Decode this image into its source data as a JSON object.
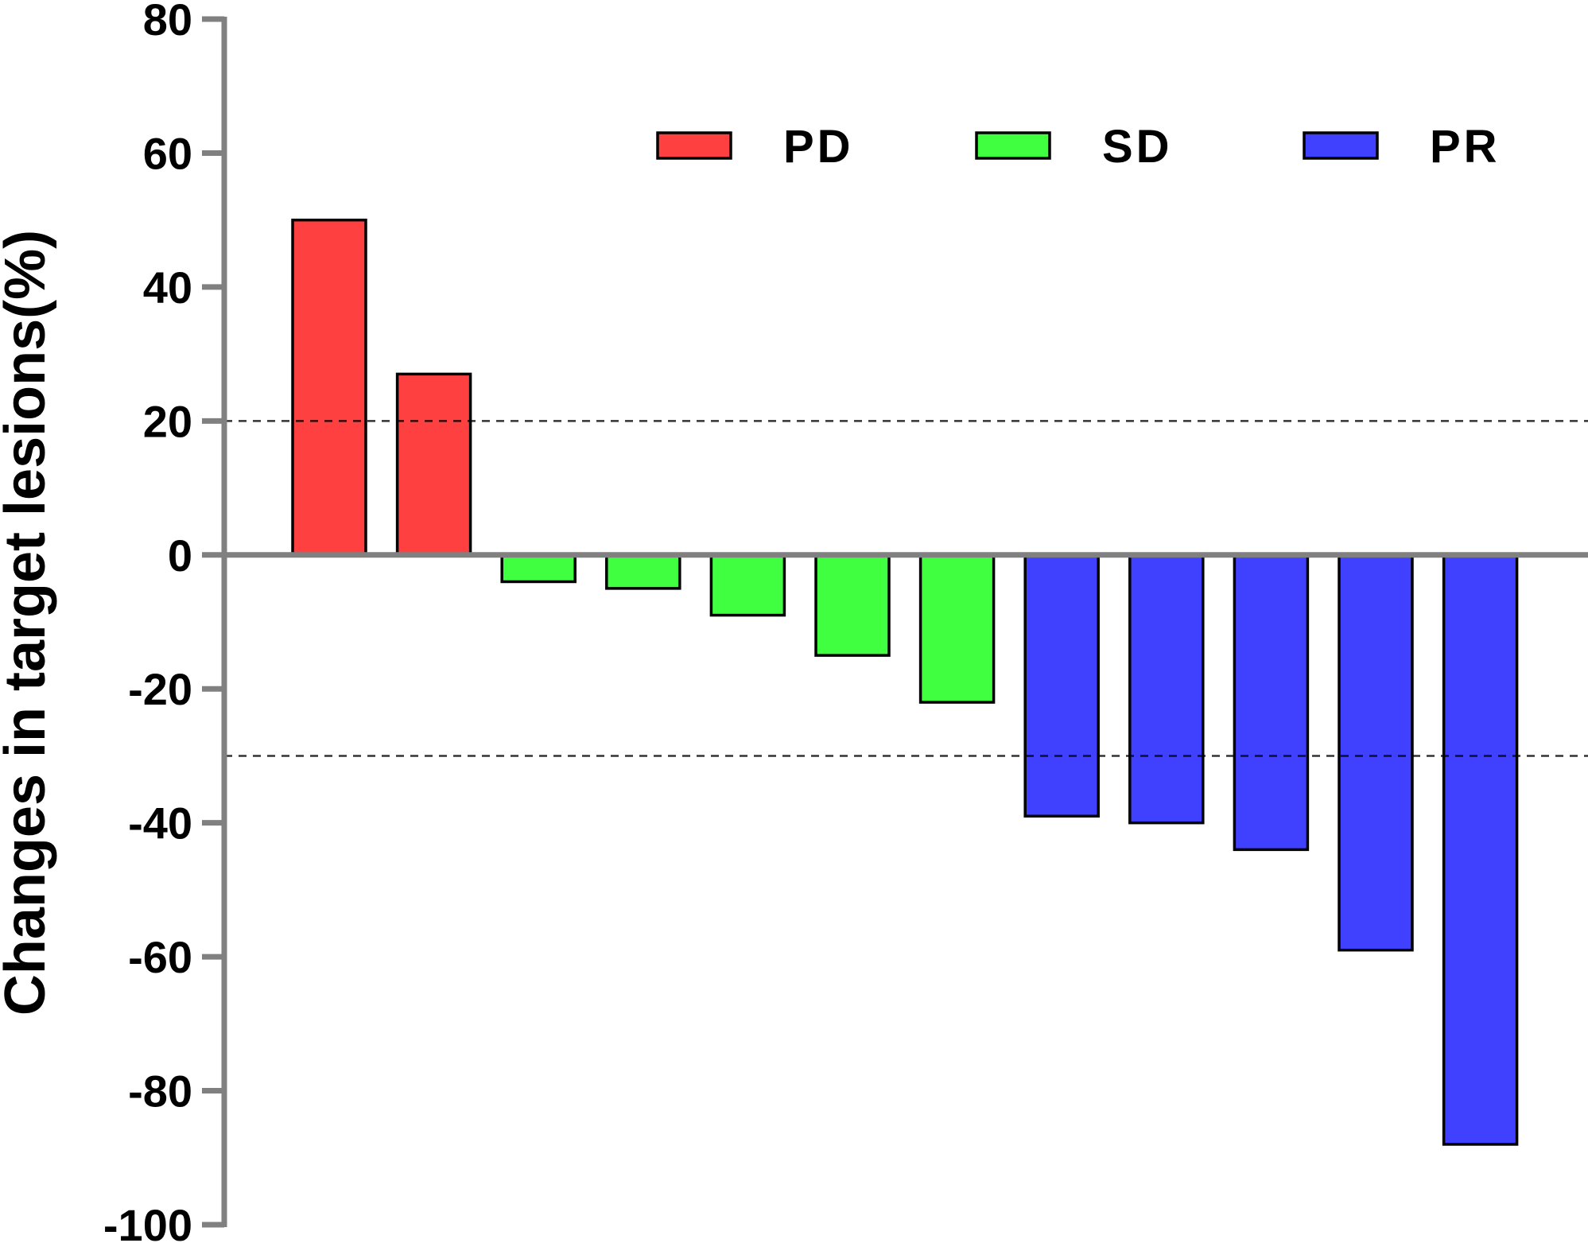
{
  "chart_data": {
    "type": "bar",
    "title": "",
    "xlabel": "",
    "ylabel": "Changes in target lesions(%)",
    "ylim": [
      -100,
      80
    ],
    "yticks": [
      80,
      60,
      40,
      20,
      0,
      -20,
      -40,
      -60,
      -80,
      -100
    ],
    "reference_lines": [
      20,
      -30
    ],
    "legend_position": "top-right",
    "legend": [
      {
        "name": "PD",
        "color": "#ff4040"
      },
      {
        "name": "SD",
        "color": "#40ff40"
      },
      {
        "name": "PR",
        "color": "#4040ff"
      }
    ],
    "values": [
      50,
      27,
      -4,
      -5,
      -9,
      -15,
      -22,
      -39,
      -40,
      -44,
      -59,
      -88
    ],
    "groups": [
      "PD",
      "PD",
      "SD",
      "SD",
      "SD",
      "SD",
      "SD",
      "PR",
      "PR",
      "PR",
      "PR",
      "PR"
    ],
    "grid": false
  }
}
